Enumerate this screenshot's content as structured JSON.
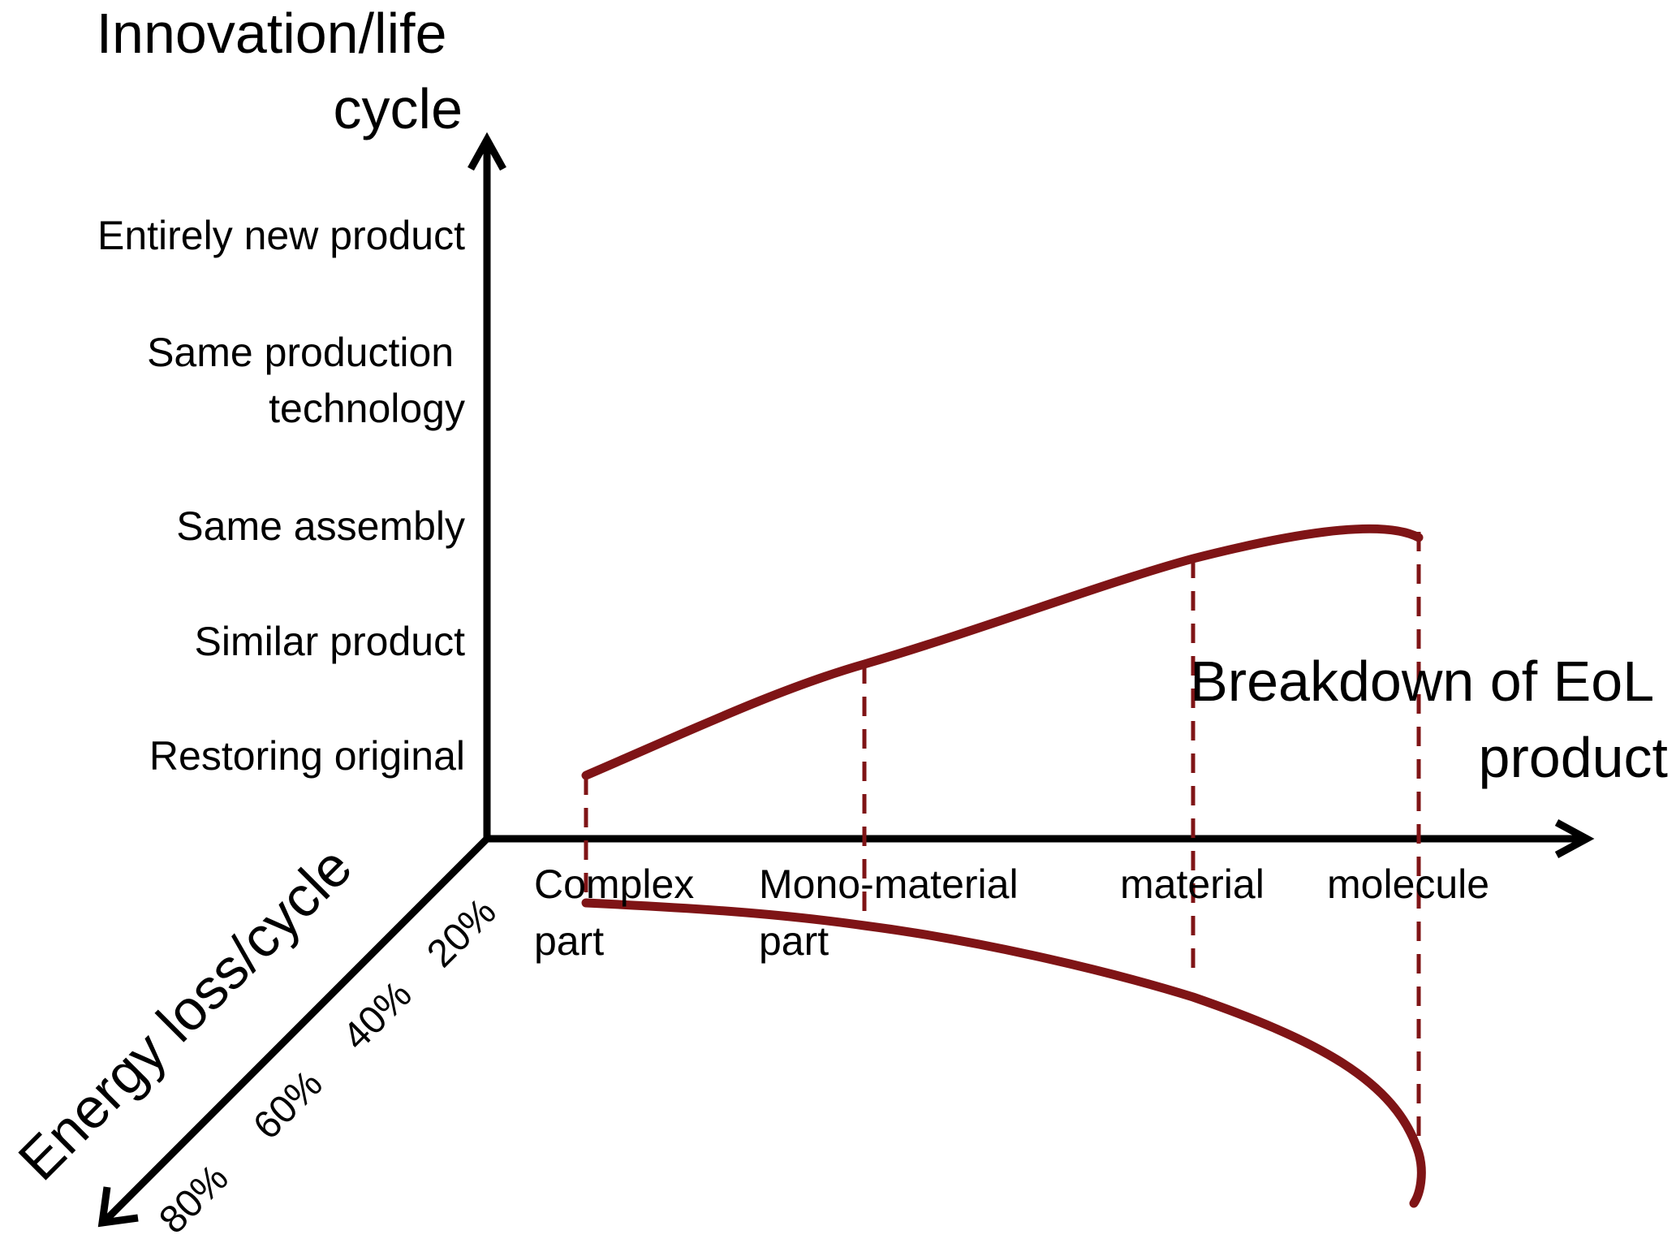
{
  "y_axis": {
    "title_lines": [
      "Innovation/life",
      "cycle"
    ],
    "levels": [
      {
        "lines": [
          "Entirely new product"
        ]
      },
      {
        "lines": [
          "Same production",
          "technology"
        ]
      },
      {
        "lines": [
          "Same assembly"
        ]
      },
      {
        "lines": [
          "Similar product"
        ]
      },
      {
        "lines": [
          "Restoring original"
        ]
      }
    ]
  },
  "x_axis": {
    "title_lines": [
      "Breakdown of EoL",
      "product"
    ],
    "stages": [
      {
        "lines": [
          "Complex",
          "part"
        ]
      },
      {
        "lines": [
          "Mono-material",
          "part"
        ]
      },
      {
        "lines": [
          "material"
        ]
      },
      {
        "lines": [
          "molecule"
        ]
      }
    ]
  },
  "z_axis": {
    "title": "Energy loss/cycle",
    "ticks": [
      "20%",
      "40%",
      "60%",
      "80%"
    ]
  },
  "colors": {
    "axis": "#000000",
    "curve": "#7f1416",
    "text": "#000000"
  }
}
